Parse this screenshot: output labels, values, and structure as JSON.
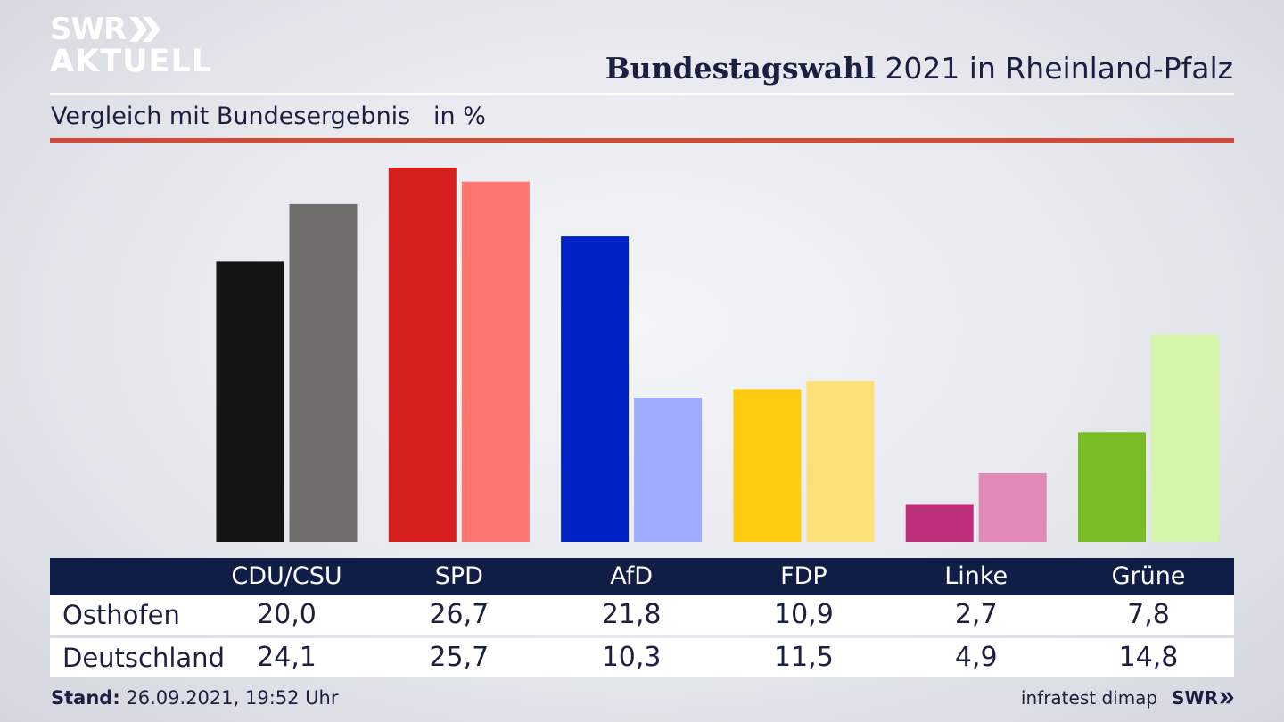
{
  "logo": {
    "top": "SWR",
    "bottom": "AKTUELL"
  },
  "title": {
    "bold": "Bundestagswahl",
    "rest": " 2021 in Rheinland-Pfalz"
  },
  "subtitle": "Vergleich mit Bundesergebnis   in %",
  "colors": {
    "osthofen": [
      "#141414",
      "#d62020",
      "#0022c4",
      "#fecb10",
      "#be2f7a",
      "#78bb22"
    ],
    "deutschland": [
      "#6f6e6c",
      "#ff7670",
      "#9eacfe",
      "#fde077",
      "#e18ab7",
      "#d5f6aa"
    ],
    "header_bg": "#101e47",
    "rule_red": "#d04a36"
  },
  "table": {
    "rows": [
      {
        "label": "Osthofen",
        "values": [
          "20,0",
          "26,7",
          "21,8",
          "10,9",
          "2,7",
          "7,8"
        ]
      },
      {
        "label": "Deutschland",
        "values": [
          "24,1",
          "25,7",
          "10,3",
          "11,5",
          "4,9",
          "14,8"
        ]
      }
    ]
  },
  "chart_data": {
    "type": "bar",
    "categories": [
      "CDU/CSU",
      "SPD",
      "AfD",
      "FDP",
      "Linke",
      "Grüne"
    ],
    "series": [
      {
        "name": "Osthofen",
        "values": [
          20.0,
          26.7,
          21.8,
          10.9,
          2.7,
          7.8
        ]
      },
      {
        "name": "Deutschland",
        "values": [
          24.1,
          25.7,
          10.3,
          11.5,
          4.9,
          14.8
        ]
      }
    ],
    "title": "Bundestagswahl 2021 in Rheinland-Pfalz",
    "subtitle": "Vergleich mit Bundesergebnis   in %",
    "ylim": [
      0,
      26.7
    ],
    "grid": false
  },
  "footer": {
    "stand_label": "Stand:",
    "stand_value": " 26.09.2021, 19:52 Uhr",
    "source": "infratest dimap",
    "swr": "SWR"
  }
}
